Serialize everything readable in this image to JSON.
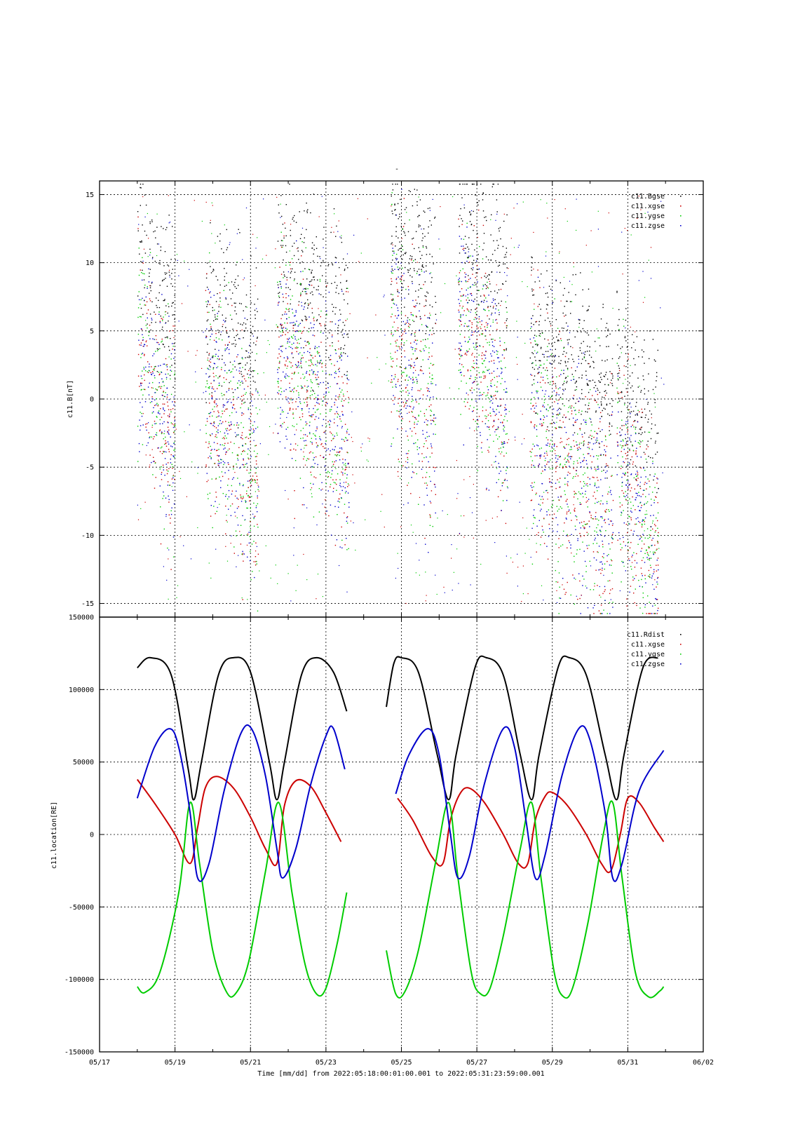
{
  "title": "-",
  "time_axis": {
    "ticks": [
      "05/17",
      "05/19",
      "05/21",
      "05/23",
      "05/25",
      "05/27",
      "05/29",
      "05/31",
      "06/02"
    ],
    "label": "Time [mm/dd]  from 2022:05:18:00:01:00.001  to  2022:05:31:23:59:00.001"
  },
  "chart_data": [
    {
      "type": "scatter",
      "ylabel": "c11.B[nT]",
      "xlim": [
        "05/17",
        "06/02"
      ],
      "ylim": [
        -16,
        16
      ],
      "y_ticks": [
        15,
        10,
        5,
        0,
        -5,
        -10,
        -15
      ],
      "grid": true,
      "legend_position": "top-right",
      "legend": [
        {
          "name": "c11.Bgse",
          "color": "#000000"
        },
        {
          "name": "c11.xgse",
          "color": "#cc0000"
        },
        {
          "name": "c11.ygse",
          "color": "#00cc00"
        },
        {
          "name": "c11.zgse",
          "color": "#0000cc"
        }
      ],
      "active_intervals": [
        {
          "start": 18.0,
          "end": 19.0,
          "center": 0.5,
          "spread": 6.5
        },
        {
          "start": 19.8,
          "end": 21.2,
          "center": -2.5,
          "spread": 7.0
        },
        {
          "start": 21.7,
          "end": 23.6,
          "center": 0.5,
          "spread": 7.0
        },
        {
          "start": 24.7,
          "end": 25.9,
          "center": 2.0,
          "spread": 7.5
        },
        {
          "start": 26.5,
          "end": 27.8,
          "center": 3.0,
          "spread": 6.0
        },
        {
          "start": 28.4,
          "end": 30.6,
          "center": -5.0,
          "spread": 7.5
        },
        {
          "start": 30.7,
          "end": 31.8,
          "center": -8.0,
          "spread": 6.5
        }
      ]
    },
    {
      "type": "line",
      "ylabel": "c11.location[RE]",
      "xlim": [
        "05/17",
        "06/02"
      ],
      "ylim": [
        -150000,
        150000
      ],
      "y_ticks": [
        "150000",
        "100000",
        "50000",
        "0",
        "-50000",
        "-100000",
        "-150000"
      ],
      "grid": true,
      "legend_position": "top-right",
      "data_span": {
        "start": "05/18",
        "end": "05/31"
      },
      "data_gap": {
        "start": "05/23",
        "end": "05/24"
      },
      "series": [
        {
          "name": "c11.Rdist",
          "color": "#000000",
          "points": [
            [
              18.0,
              115000
            ],
            [
              18.35,
              122000
            ],
            [
              18.9,
              110000
            ],
            [
              19.35,
              45000
            ],
            [
              19.5,
              24000
            ],
            [
              19.7,
              50000
            ],
            [
              20.15,
              110000
            ],
            [
              20.55,
              122000
            ],
            [
              21.0,
              112000
            ],
            [
              21.5,
              50000
            ],
            [
              21.7,
              24000
            ],
            [
              21.9,
              50000
            ],
            [
              22.35,
              110000
            ],
            [
              22.75,
              122000
            ],
            [
              23.2,
              112000
            ],
            [
              23.55,
              85000
            ]
          ]
        },
        {
          "name": "c11.xgse",
          "color": "#cc0000",
          "points": [
            [
              18.0,
              38000
            ],
            [
              18.5,
              20000
            ],
            [
              19.0,
              0
            ],
            [
              19.4,
              -20000
            ],
            [
              19.6,
              5000
            ],
            [
              19.8,
              32000
            ],
            [
              20.1,
              40000
            ],
            [
              20.55,
              32000
            ],
            [
              21.0,
              12000
            ],
            [
              21.4,
              -10000
            ],
            [
              21.7,
              -20000
            ],
            [
              21.9,
              20000
            ],
            [
              22.2,
              37000
            ],
            [
              22.6,
              33000
            ],
            [
              23.0,
              15000
            ],
            [
              23.4,
              -5000
            ]
          ]
        },
        {
          "name": "c11.ygse",
          "color": "#00cc00",
          "points": [
            [
              18.0,
              -105000
            ],
            [
              18.2,
              -109000
            ],
            [
              18.6,
              -95000
            ],
            [
              19.1,
              -40000
            ],
            [
              19.4,
              22000
            ],
            [
              19.65,
              -20000
            ],
            [
              20.0,
              -80000
            ],
            [
              20.35,
              -108000
            ],
            [
              20.6,
              -110000
            ],
            [
              20.95,
              -88000
            ],
            [
              21.4,
              -25000
            ],
            [
              21.75,
              22000
            ],
            [
              22.1,
              -40000
            ],
            [
              22.45,
              -90000
            ],
            [
              22.75,
              -110000
            ],
            [
              23.0,
              -106000
            ],
            [
              23.3,
              -75000
            ],
            [
              23.55,
              -40000
            ]
          ]
        },
        {
          "name": "c11.zgse",
          "color": "#0000cc",
          "points": [
            [
              18.0,
              25000
            ],
            [
              18.45,
              60000
            ],
            [
              18.85,
              73000
            ],
            [
              19.1,
              60000
            ],
            [
              19.4,
              15000
            ],
            [
              19.6,
              -30000
            ],
            [
              19.9,
              -20000
            ],
            [
              20.3,
              30000
            ],
            [
              20.75,
              70000
            ],
            [
              21.05,
              72000
            ],
            [
              21.4,
              40000
            ],
            [
              21.7,
              -10000
            ],
            [
              21.85,
              -30000
            ],
            [
              22.2,
              -10000
            ],
            [
              22.6,
              35000
            ],
            [
              23.0,
              68000
            ],
            [
              23.2,
              73000
            ],
            [
              23.5,
              45000
            ]
          ]
        },
        {
          "name": "c11.Rdist",
          "color": "#000000",
          "points": [
            [
              24.6,
              88000
            ],
            [
              24.8,
              118000
            ],
            [
              25.0,
              122000
            ],
            [
              25.45,
              112000
            ],
            [
              25.95,
              55000
            ],
            [
              26.25,
              24000
            ],
            [
              26.45,
              55000
            ],
            [
              26.95,
              115000
            ],
            [
              27.25,
              122000
            ],
            [
              27.7,
              110000
            ],
            [
              28.15,
              55000
            ],
            [
              28.45,
              24000
            ],
            [
              28.65,
              55000
            ],
            [
              29.15,
              115000
            ],
            [
              29.45,
              122000
            ],
            [
              29.9,
              110000
            ],
            [
              30.4,
              55000
            ],
            [
              30.7,
              24000
            ],
            [
              30.9,
              55000
            ],
            [
              31.4,
              115000
            ],
            [
              31.8,
              122000
            ]
          ]
        },
        {
          "name": "c11.xgse",
          "color": "#cc0000",
          "points": [
            [
              24.9,
              25000
            ],
            [
              25.3,
              10000
            ],
            [
              25.8,
              -15000
            ],
            [
              26.1,
              -20000
            ],
            [
              26.3,
              10000
            ],
            [
              26.55,
              28000
            ],
            [
              26.8,
              32000
            ],
            [
              27.2,
              22000
            ],
            [
              27.7,
              0
            ],
            [
              28.1,
              -20000
            ],
            [
              28.35,
              -20000
            ],
            [
              28.55,
              10000
            ],
            [
              28.8,
              26000
            ],
            [
              29.0,
              29000
            ],
            [
              29.4,
              20000
            ],
            [
              29.9,
              0
            ],
            [
              30.3,
              -20000
            ],
            [
              30.55,
              -25000
            ],
            [
              30.8,
              0
            ],
            [
              31.0,
              25000
            ],
            [
              31.3,
              22000
            ],
            [
              31.7,
              5000
            ],
            [
              31.95,
              -5000
            ]
          ]
        },
        {
          "name": "c11.ygse",
          "color": "#00cc00",
          "points": [
            [
              24.6,
              -80000
            ],
            [
              24.85,
              -110000
            ],
            [
              25.1,
              -108000
            ],
            [
              25.45,
              -80000
            ],
            [
              25.9,
              -20000
            ],
            [
              26.25,
              22000
            ],
            [
              26.5,
              -30000
            ],
            [
              26.85,
              -95000
            ],
            [
              27.1,
              -110000
            ],
            [
              27.35,
              -106000
            ],
            [
              27.7,
              -70000
            ],
            [
              28.15,
              -10000
            ],
            [
              28.45,
              22000
            ],
            [
              28.7,
              -30000
            ],
            [
              29.05,
              -95000
            ],
            [
              29.3,
              -112000
            ],
            [
              29.55,
              -105000
            ],
            [
              29.95,
              -60000
            ],
            [
              30.35,
              0
            ],
            [
              30.6,
              22000
            ],
            [
              30.85,
              -30000
            ],
            [
              31.2,
              -95000
            ],
            [
              31.55,
              -112000
            ],
            [
              31.85,
              -108000
            ],
            [
              31.95,
              -105000
            ]
          ]
        },
        {
          "name": "c11.zgse",
          "color": "#0000cc",
          "points": [
            [
              24.85,
              28000
            ],
            [
              25.2,
              55000
            ],
            [
              25.7,
              73000
            ],
            [
              26.0,
              55000
            ],
            [
              26.3,
              0
            ],
            [
              26.5,
              -30000
            ],
            [
              26.8,
              -15000
            ],
            [
              27.2,
              35000
            ],
            [
              27.7,
              73000
            ],
            [
              28.0,
              60000
            ],
            [
              28.3,
              10000
            ],
            [
              28.55,
              -30000
            ],
            [
              28.8,
              -15000
            ],
            [
              29.25,
              40000
            ],
            [
              29.7,
              73000
            ],
            [
              30.0,
              65000
            ],
            [
              30.4,
              15000
            ],
            [
              30.6,
              -30000
            ],
            [
              30.85,
              -20000
            ],
            [
              31.3,
              30000
            ],
            [
              31.95,
              58000
            ]
          ]
        }
      ]
    }
  ]
}
